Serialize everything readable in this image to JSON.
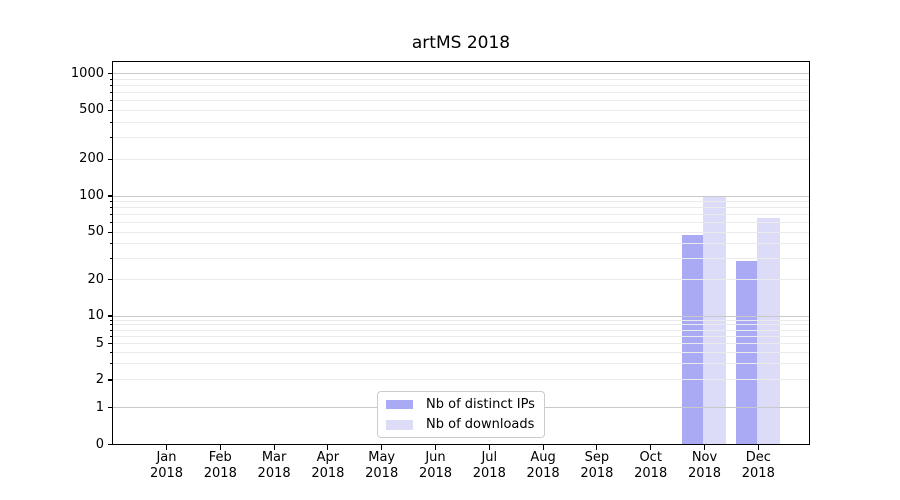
{
  "chart_data": {
    "type": "bar",
    "title": "artMS 2018",
    "categories": [
      "Jan",
      "Feb",
      "Mar",
      "Apr",
      "May",
      "Jun",
      "Jul",
      "Aug",
      "Sep",
      "Oct",
      "Nov",
      "Dec"
    ],
    "x_tick_year": "2018",
    "series": [
      {
        "name": "Nb of distinct IPs",
        "color": "#a9a9f4",
        "values": [
          0,
          0,
          0,
          0,
          0,
          0,
          0,
          0,
          0,
          0,
          47,
          29
        ]
      },
      {
        "name": "Nb of downloads",
        "color": "#dcdcf8",
        "values": [
          0,
          0,
          0,
          0,
          0,
          0,
          0,
          0,
          0,
          0,
          100,
          65
        ]
      }
    ],
    "y_axis": {
      "scale": "log-with-zero-baseline",
      "tick_labels": [
        0,
        1,
        2,
        5,
        10,
        20,
        50,
        100,
        200,
        500,
        1000
      ],
      "range": [
        0,
        1000
      ]
    },
    "grid": {
      "horizontal": true,
      "minor_log_lines": true
    },
    "legend": {
      "position": "bottom-center",
      "entries": [
        "Nb of distinct IPs",
        "Nb of downloads"
      ]
    }
  },
  "colors": {
    "background": "#ffffff",
    "spine": "#000000",
    "grid_major": "#c9c9c9",
    "grid_minor": "#ebebeb",
    "text": "#000000",
    "legend_border": "#cccccc"
  }
}
